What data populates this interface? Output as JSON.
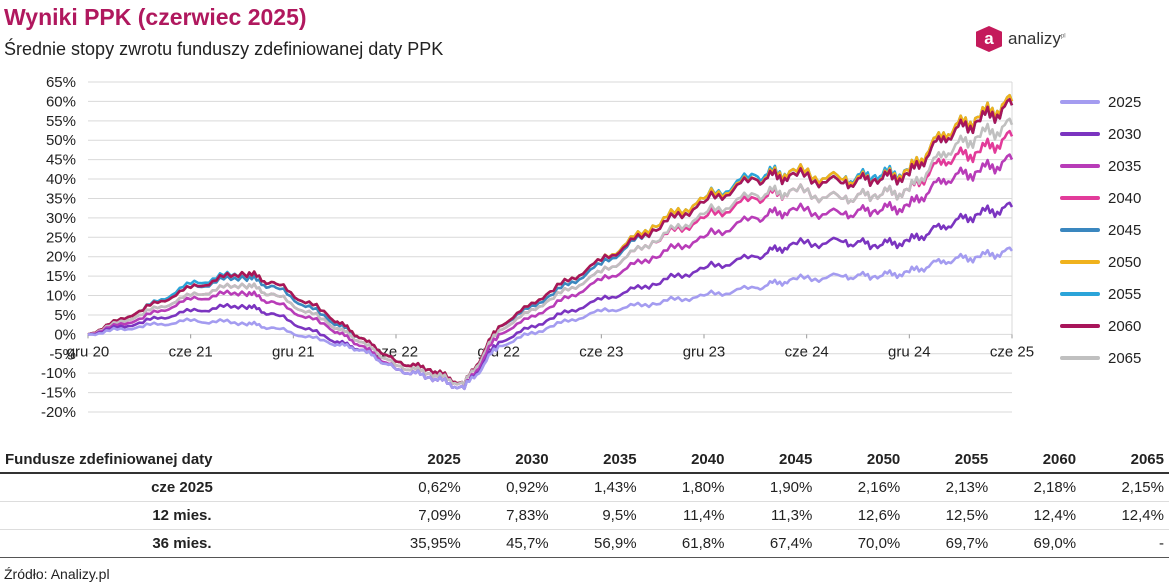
{
  "title": "Wyniki PPK (czerwiec 2025)",
  "subtitle": "Średnie stopy zwrotu funduszy zdefiniowanej daty PPK",
  "logo": {
    "text": "analizy",
    "sup": "pl",
    "mark": "a"
  },
  "source": "Źródło: Analizy.pl",
  "chart_data": {
    "type": "line",
    "x_ticks": [
      "gru 20",
      "cze 21",
      "gru 21",
      "cze 22",
      "gru 22",
      "cze 23",
      "gru 23",
      "cze 24",
      "gru 24",
      "cze 25"
    ],
    "y_ticks": [
      "65%",
      "60%",
      "55%",
      "50%",
      "45%",
      "40%",
      "35%",
      "30%",
      "25%",
      "20%",
      "15%",
      "10%",
      "5%",
      "0%",
      "-5%",
      "-10%",
      "-15%",
      "-20%"
    ],
    "ylim": [
      -20,
      65
    ],
    "x_dates": [
      "2020-12",
      "2021-03",
      "2021-06",
      "2021-09",
      "2021-11",
      "2022-02",
      "2022-04",
      "2022-06",
      "2022-08",
      "2022-10",
      "2022-12",
      "2023-03",
      "2023-06",
      "2023-09",
      "2023-12",
      "2024-03",
      "2024-05",
      "2024-08",
      "2024-10",
      "2024-12",
      "2025-02",
      "2025-04",
      "2025-06"
    ],
    "series": [
      {
        "name": "2025",
        "color": "#a49cf0",
        "values": [
          0,
          2,
          3.5,
          3,
          1.5,
          -2,
          -4,
          -9,
          -11,
          -14,
          -3,
          2,
          6,
          8,
          10,
          12,
          14,
          15,
          15,
          16,
          19,
          20,
          21.5
        ]
      },
      {
        "name": "2030",
        "color": "#7b34c0",
        "values": [
          0,
          3,
          6,
          7.5,
          5,
          -1,
          -4,
          -9,
          -11,
          -14,
          -2,
          4,
          9,
          13,
          17,
          20,
          23,
          24,
          23,
          24,
          28,
          31,
          32.8
        ]
      },
      {
        "name": "2035",
        "color": "#b83cb8",
        "values": [
          0,
          4,
          9,
          11,
          8,
          2,
          -3,
          -9,
          -11,
          -14,
          0,
          7,
          14,
          20,
          25,
          30,
          32,
          31,
          32,
          33,
          40,
          42,
          45
        ]
      },
      {
        "name": "2040",
        "color": "#e23b9a",
        "values": [
          0,
          5,
          10,
          13,
          10,
          3,
          -2,
          -8,
          -10,
          -13,
          1,
          9,
          16,
          24,
          30,
          35,
          37,
          35,
          36,
          37,
          45,
          47,
          51
        ]
      },
      {
        "name": "2045",
        "color": "#3a87bf",
        "values": [
          0,
          6,
          12,
          15,
          12,
          4,
          -1,
          -7,
          -9,
          -13,
          2,
          10,
          18,
          27,
          34,
          40,
          41,
          39,
          40,
          41,
          51,
          55,
          59
        ]
      },
      {
        "name": "2050",
        "color": "#f0b21d",
        "values": [
          0,
          6,
          12,
          16,
          13,
          5,
          -1,
          -7,
          -9,
          -13,
          2,
          11,
          19,
          28,
          35,
          40,
          42,
          40,
          40,
          42,
          52,
          56,
          60
        ]
      },
      {
        "name": "2055",
        "color": "#2ba4d9",
        "values": [
          0,
          6,
          13,
          16,
          13,
          5,
          -1,
          -7,
          -9,
          -13,
          2,
          11,
          19,
          28,
          35,
          41,
          42,
          40,
          41,
          42,
          52,
          56,
          60
        ]
      },
      {
        "name": "2060",
        "color": "#a8155a",
        "values": [
          0,
          6,
          12,
          16,
          13,
          5,
          -1,
          -7,
          -9,
          -13,
          2,
          11,
          19,
          27,
          34,
          40,
          41,
          39,
          40,
          41,
          51,
          55,
          59
        ]
      },
      {
        "name": "2065",
        "color": "#c0c0c0",
        "values": [
          0,
          5,
          10,
          13,
          10,
          3,
          -2,
          -8,
          -10,
          -13,
          1,
          9,
          16,
          24,
          31,
          36,
          37,
          35,
          36,
          37,
          47,
          51,
          54
        ]
      }
    ]
  },
  "table": {
    "header": [
      "Fundusze zdefiniowanej daty",
      "2025",
      "2030",
      "2035",
      "2040",
      "2045",
      "2050",
      "2055",
      "2060",
      "2065"
    ],
    "rows": [
      [
        "cze 2025",
        "0,62%",
        "0,92%",
        "1,43%",
        "1,80%",
        "1,90%",
        "2,16%",
        "2,13%",
        "2,18%",
        "2,15%"
      ],
      [
        "12 mies.",
        "7,09%",
        "7,83%",
        "9,5%",
        "11,4%",
        "11,3%",
        "12,6%",
        "12,5%",
        "12,4%",
        "12,4%"
      ],
      [
        "36 mies.",
        "35,95%",
        "45,7%",
        "56,9%",
        "61,8%",
        "67,4%",
        "70,0%",
        "69,7%",
        "69,0%",
        "-"
      ]
    ]
  }
}
